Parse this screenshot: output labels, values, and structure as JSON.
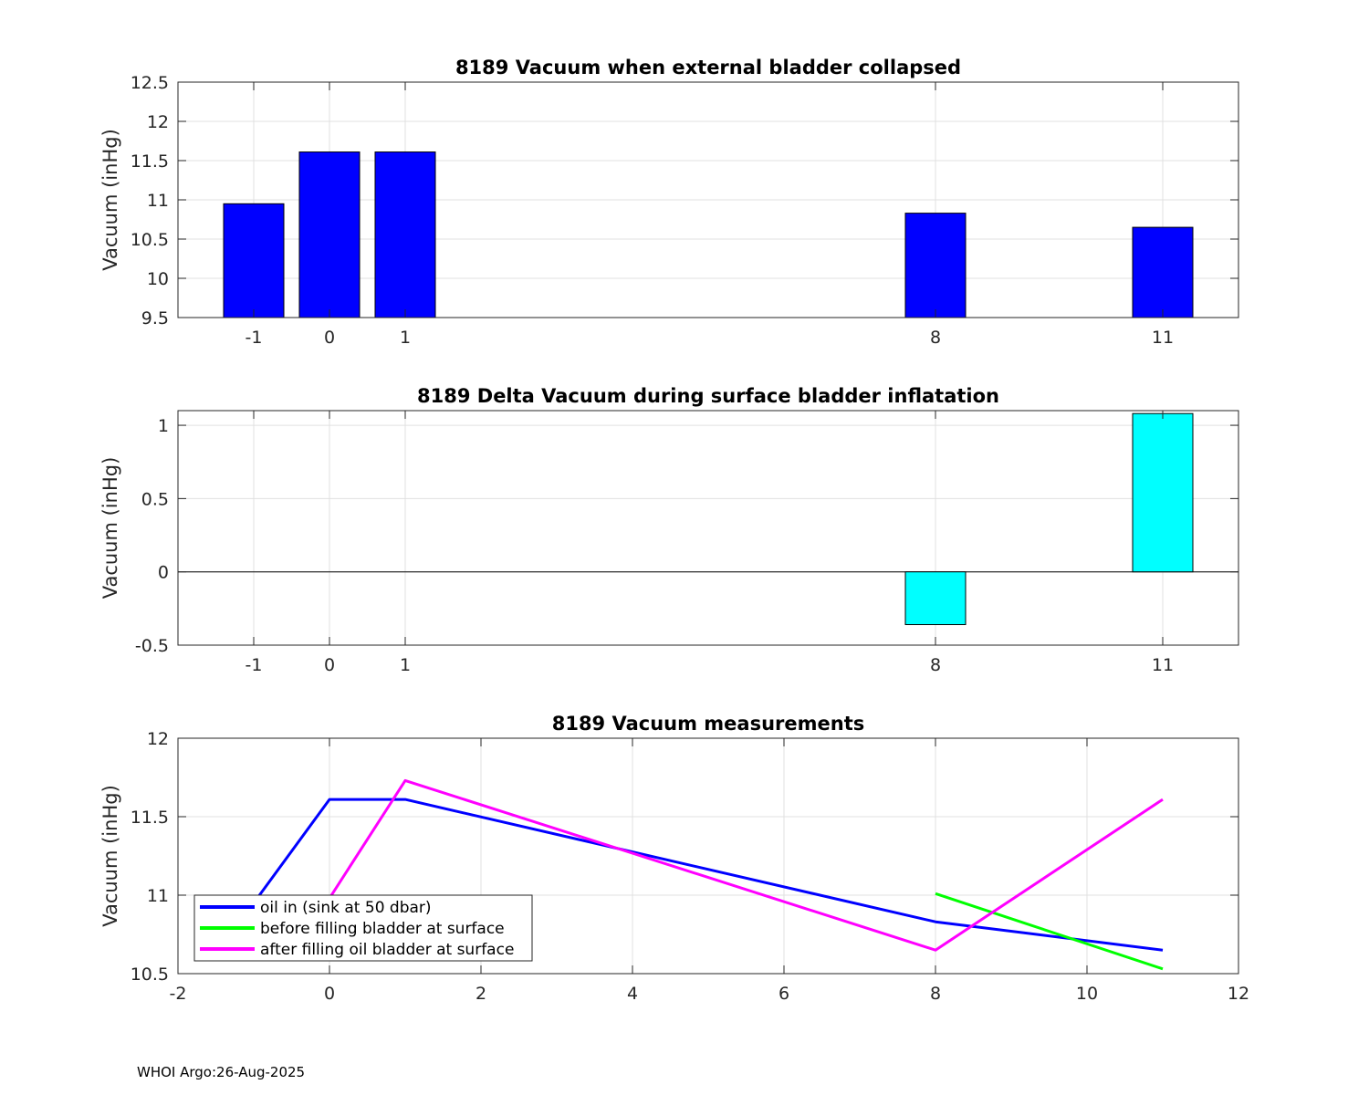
{
  "footer": "WHOI Argo:26-Aug-2025",
  "chart_data": [
    {
      "type": "bar",
      "title": "8189 Vacuum when external bladder collapsed",
      "xlabel": "",
      "ylabel": "Vacuum (inHg)",
      "categories": [
        "-1",
        "0",
        "1",
        "8",
        "11"
      ],
      "x": [
        -1,
        0,
        1,
        8,
        11
      ],
      "values": [
        10.95,
        11.61,
        11.61,
        10.83,
        10.65
      ],
      "xlim": [
        -2,
        12
      ],
      "ylim": [
        9.5,
        12.5
      ],
      "yticks": [
        9.5,
        10,
        10.5,
        11,
        11.5,
        12,
        12.5
      ],
      "ytick_labels": [
        "9.5",
        "10",
        "10.5",
        "11",
        "11.5",
        "12",
        "12.5"
      ],
      "xtick_labels": [
        "-1",
        "0",
        "1",
        "8",
        "11"
      ],
      "bar_color": "#0000ff",
      "grid": true
    },
    {
      "type": "bar",
      "title": "8189 Delta Vacuum during surface bladder inflatation",
      "xlabel": "",
      "ylabel": "Vacuum (inHg)",
      "categories": [
        "8",
        "11"
      ],
      "x": [
        8,
        11
      ],
      "values": [
        -0.36,
        1.08
      ],
      "xlim": [
        -2,
        12
      ],
      "ylim": [
        -0.5,
        1.1
      ],
      "yticks": [
        -0.5,
        0,
        0.5,
        1
      ],
      "ytick_labels": [
        "-0.5",
        "0",
        "0.5",
        "1"
      ],
      "xtick_positions": [
        -1,
        0,
        1,
        8,
        11
      ],
      "xtick_labels": [
        "-1",
        "0",
        "1",
        "8",
        "11"
      ],
      "bar_color": "#00ffff",
      "grid": true
    },
    {
      "type": "line",
      "title": "8189 Vacuum measurements",
      "xlabel": "",
      "ylabel": "Vacuum (inHg)",
      "xlim": [
        -2,
        12
      ],
      "ylim": [
        10.5,
        12
      ],
      "xticks": [
        -2,
        0,
        2,
        4,
        6,
        8,
        10,
        12
      ],
      "xtick_labels": [
        "-2",
        "0",
        "2",
        "4",
        "6",
        "8",
        "10",
        "12"
      ],
      "yticks": [
        10.5,
        11,
        11.5,
        12
      ],
      "ytick_labels": [
        "10.5",
        "11",
        "11.5",
        "12"
      ],
      "legend_position": "bottom-left",
      "grid": true,
      "series": [
        {
          "name": "oil in (sink at 50 dbar)",
          "color": "#0000ff",
          "x": [
            -1,
            0,
            1,
            8,
            11
          ],
          "y": [
            10.95,
            11.61,
            11.61,
            10.83,
            10.65
          ]
        },
        {
          "name": "before filling bladder at surface",
          "color": "#00ff00",
          "x": [
            8,
            11
          ],
          "y": [
            11.01,
            10.53
          ]
        },
        {
          "name": "after filling oil bladder at surface",
          "color": "#ff00ff",
          "x": [
            0,
            1,
            8,
            11
          ],
          "y": [
            10.98,
            11.73,
            10.65,
            11.61
          ]
        }
      ]
    }
  ]
}
